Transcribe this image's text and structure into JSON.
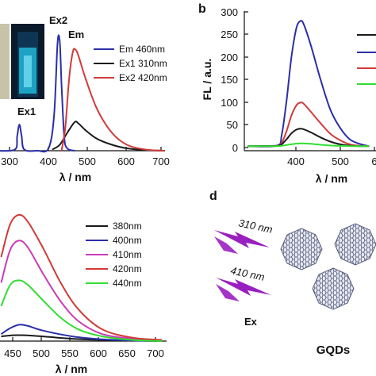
{
  "figure": {
    "panel_b_letter": "b",
    "panel_d_letter": "d"
  },
  "panel_a": {
    "peak_labels": [
      "Ex1",
      "Ex2",
      "Em"
    ],
    "legend": [
      "Em 460nm",
      "Ex1 310nm",
      "Ex2 420nm"
    ],
    "xlabel": "λ / nm",
    "xticks": [
      "300",
      "400",
      "500",
      "600",
      "700"
    ]
  },
  "panel_b": {
    "ylabel": "FL / a.u.",
    "xlabel": "λ / nm",
    "yticks": [
      "0",
      "50",
      "100",
      "150",
      "200",
      "250",
      "300"
    ],
    "xticks": [
      "400",
      "500",
      "6"
    ]
  },
  "panel_c": {
    "legend": [
      "380nm",
      "400nm",
      "410nm",
      "420nm",
      "440nm"
    ],
    "xlabel": "λ / nm",
    "xticks": [
      "450",
      "500",
      "550",
      "600",
      "650",
      "700"
    ]
  },
  "panel_d": {
    "arrow_labels": [
      "310 nm",
      "410 nm"
    ],
    "ex_label": "Ex",
    "gqds_label": "GQDs"
  },
  "colors": {
    "black": "#1a1a1a",
    "blue": "#2b2fa8",
    "red": "#d23a3a",
    "magenta": "#c93bb8",
    "green": "#33dd33",
    "arrow": "#9a1fc0"
  },
  "chart_data": [
    {
      "id": "a",
      "type": "line",
      "xlabel": "λ / nm",
      "xlim": [
        250,
        700
      ],
      "series": [
        {
          "name": "Em 460nm",
          "color": "#1a1a1a",
          "points": [
            [
              400,
              0.01
            ],
            [
              420,
              0.05
            ],
            [
              440,
              0.15
            ],
            [
              460,
              0.24
            ],
            [
              470,
              0.23
            ],
            [
              490,
              0.17
            ],
            [
              520,
              0.1
            ],
            [
              560,
              0.05
            ],
            [
              600,
              0.02
            ],
            [
              650,
              0.005
            ],
            [
              700,
              0.0
            ]
          ]
        },
        {
          "name": "Ex1 310nm",
          "color": "#2b2fa8",
          "points": [
            [
              250,
              0.0
            ],
            [
              300,
              0.01
            ],
            [
              306,
              0.12
            ],
            [
              312,
              0.22
            ],
            [
              318,
              0.12
            ],
            [
              325,
              0.01
            ],
            [
              360,
              0.0
            ],
            [
              390,
              0.02
            ],
            [
              405,
              0.3
            ],
            [
              414,
              0.9
            ],
            [
              420,
              0.92
            ],
            [
              425,
              0.55
            ],
            [
              432,
              0.12
            ],
            [
              440,
              0.02
            ],
            [
              460,
              0.0
            ]
          ]
        },
        {
          "name": "Ex2 420nm",
          "color": "#d23a3a",
          "points": [
            [
              425,
              0.0
            ],
            [
              435,
              0.2
            ],
            [
              445,
              0.6
            ],
            [
              455,
              0.83
            ],
            [
              462,
              0.85
            ],
            [
              470,
              0.8
            ],
            [
              490,
              0.6
            ],
            [
              520,
              0.35
            ],
            [
              560,
              0.15
            ],
            [
              600,
              0.05
            ],
            [
              650,
              0.01
            ],
            [
              700,
              0.0
            ]
          ]
        }
      ]
    },
    {
      "id": "b",
      "type": "line",
      "ylabel": "FL / a.u.",
      "xlabel": "λ / nm",
      "ylim": [
        -5,
        300
      ],
      "xlim": [
        350,
        600
      ],
      "series": [
        {
          "color": "#2b2fa8",
          "points": [
            [
              350,
              5
            ],
            [
              410,
              6
            ],
            [
              420,
              30
            ],
            [
              430,
              105
            ],
            [
              440,
              200
            ],
            [
              450,
              262
            ],
            [
              458,
              278
            ],
            [
              465,
              272
            ],
            [
              480,
              225
            ],
            [
              500,
              150
            ],
            [
              520,
              85
            ],
            [
              540,
              45
            ],
            [
              560,
              20
            ],
            [
              580,
              10
            ],
            [
              600,
              5
            ]
          ]
        },
        {
          "color": "#d23a3a",
          "points": [
            [
              350,
              5
            ],
            [
              410,
              6
            ],
            [
              420,
              12
            ],
            [
              430,
              38
            ],
            [
              440,
              72
            ],
            [
              450,
              94
            ],
            [
              458,
              100
            ],
            [
              465,
              98
            ],
            [
              480,
              80
            ],
            [
              500,
              55
            ],
            [
              520,
              32
            ],
            [
              540,
              18
            ],
            [
              560,
              9
            ],
            [
              580,
              6
            ],
            [
              600,
              5
            ]
          ]
        },
        {
          "color": "#1a1a1a",
          "points": [
            [
              350,
              5
            ],
            [
              410,
              6
            ],
            [
              420,
              9
            ],
            [
              430,
              20
            ],
            [
              440,
              33
            ],
            [
              450,
              41
            ],
            [
              458,
              43
            ],
            [
              465,
              42
            ],
            [
              480,
              35
            ],
            [
              500,
              24
            ],
            [
              520,
              15
            ],
            [
              540,
              9
            ],
            [
              560,
              6
            ],
            [
              580,
              5
            ],
            [
              600,
              5
            ]
          ]
        },
        {
          "color": "#33dd33",
          "points": [
            [
              350,
              5
            ],
            [
              410,
              5
            ],
            [
              420,
              6
            ],
            [
              440,
              9
            ],
            [
              458,
              11
            ],
            [
              480,
              10
            ],
            [
              500,
              8
            ],
            [
              530,
              6
            ],
            [
              560,
              5
            ],
            [
              600,
              5
            ]
          ]
        }
      ]
    },
    {
      "id": "c",
      "type": "line",
      "xlabel": "λ / nm",
      "xlim": [
        430,
        700
      ],
      "series": [
        {
          "name": "380nm",
          "color": "#1a1a1a",
          "points": [
            [
              430,
              0.04
            ],
            [
              450,
              0.05
            ],
            [
              470,
              0.05
            ],
            [
              500,
              0.04
            ],
            [
              550,
              0.02
            ],
            [
              600,
              0.01
            ],
            [
              650,
              0.005
            ],
            [
              700,
              0.0
            ]
          ]
        },
        {
          "name": "400nm",
          "color": "#2b2fa8",
          "points": [
            [
              430,
              0.06
            ],
            [
              445,
              0.11
            ],
            [
              460,
              0.14
            ],
            [
              475,
              0.13
            ],
            [
              500,
              0.09
            ],
            [
              550,
              0.04
            ],
            [
              600,
              0.015
            ],
            [
              650,
              0.005
            ],
            [
              700,
              0.0
            ]
          ]
        },
        {
          "name": "410nm",
          "color": "#c93bb8",
          "points": [
            [
              430,
              0.5
            ],
            [
              445,
              0.78
            ],
            [
              460,
              0.86
            ],
            [
              475,
              0.8
            ],
            [
              500,
              0.58
            ],
            [
              530,
              0.34
            ],
            [
              560,
              0.17
            ],
            [
              600,
              0.06
            ],
            [
              650,
              0.02
            ],
            [
              700,
              0.005
            ]
          ]
        },
        {
          "name": "420nm",
          "color": "#d23a3a",
          "points": [
            [
              430,
              0.72
            ],
            [
              445,
              1.0
            ],
            [
              460,
              1.08
            ],
            [
              475,
              1.02
            ],
            [
              500,
              0.8
            ],
            [
              530,
              0.5
            ],
            [
              560,
              0.27
            ],
            [
              600,
              0.1
            ],
            [
              650,
              0.03
            ],
            [
              700,
              0.01
            ]
          ]
        },
        {
          "name": "440nm",
          "color": "#33dd33",
          "points": [
            [
              430,
              0.3
            ],
            [
              445,
              0.48
            ],
            [
              460,
              0.52
            ],
            [
              475,
              0.48
            ],
            [
              500,
              0.35
            ],
            [
              530,
              0.2
            ],
            [
              560,
              0.1
            ],
            [
              600,
              0.04
            ],
            [
              650,
              0.01
            ],
            [
              700,
              0.0
            ]
          ]
        }
      ]
    }
  ]
}
